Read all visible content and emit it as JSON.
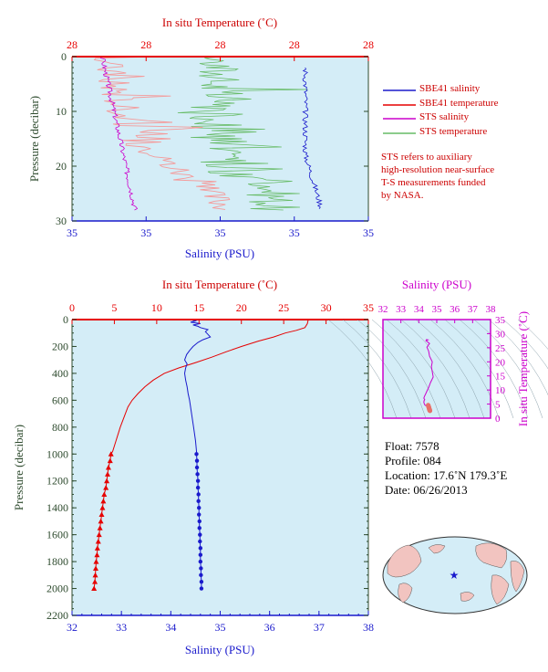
{
  "colors": {
    "salinity": "#1a1acc",
    "temperature": "#e60000",
    "sts_salinity": "#cc00cc",
    "sts_temperature": "#66bb66",
    "sts_temp_light": "#f49a9a",
    "background": "#d4edf7",
    "ts_accent": "#cc00cc",
    "pressure_label": "#2d4a2d"
  },
  "top_panel": {
    "top_axis_title": "In situ Temperature (˚C)",
    "top_ticks": [
      "28",
      "28",
      "28",
      "28",
      "28"
    ],
    "bottom_axis_title": "Salinity (PSU)",
    "bottom_ticks": [
      "35",
      "35",
      "35",
      "35",
      "35"
    ],
    "y_axis_title": "Pressure (decibar)",
    "y_ticks": [
      "0",
      "10",
      "20",
      "30"
    ]
  },
  "legend": {
    "items": [
      {
        "label": "SBE41 salinity",
        "color": "#1a1acc"
      },
      {
        "label": "SBE41 temperature",
        "color": "#e60000"
      },
      {
        "label": "STS salinity",
        "color": "#cc00cc"
      },
      {
        "label": "STS temperature",
        "color": "#66bb66"
      }
    ],
    "note_lines": [
      "STS refers to auxiliary",
      "high-resolution near-surface",
      "T-S measurements funded",
      "by NASA."
    ]
  },
  "chart_data": [
    {
      "type": "line",
      "title": "",
      "xlabel": "Salinity (PSU)",
      "x2label": "In situ Temperature (˚C)",
      "ylabel": "Pressure (decibar)",
      "xlim": [
        32,
        38
      ],
      "x2lim": [
        0,
        35
      ],
      "ylim": [
        2200,
        0
      ],
      "x_ticks": [
        32,
        33,
        34,
        35,
        36,
        37,
        38
      ],
      "x2_ticks": [
        0,
        5,
        10,
        15,
        20,
        25,
        30,
        35
      ],
      "y_ticks": [
        0,
        200,
        400,
        600,
        800,
        1000,
        1200,
        1400,
        1600,
        1800,
        2000,
        2200
      ],
      "series": [
        {
          "name": "SBE41 temperature",
          "axis": "top",
          "pressure": [
            0,
            30,
            60,
            80,
            100,
            130,
            160,
            200,
            240,
            280,
            320,
            360,
            400,
            450,
            500,
            550,
            600,
            650,
            700,
            800,
            900,
            980
          ],
          "values": [
            27.9,
            27.8,
            27.5,
            26.5,
            25.2,
            23.8,
            22.0,
            20.0,
            18.2,
            16.5,
            14.6,
            12.6,
            10.9,
            9.6,
            8.6,
            7.8,
            7.1,
            6.6,
            6.3,
            5.7,
            5.2,
            4.8
          ]
        },
        {
          "name": "SBE41 temperature discrete",
          "axis": "top",
          "pressure": [
            1000,
            1050,
            1100,
            1150,
            1200,
            1250,
            1300,
            1350,
            1400,
            1450,
            1500,
            1550,
            1600,
            1650,
            1700,
            1750,
            1800,
            1850,
            1900,
            1950,
            2000
          ],
          "values": [
            4.6,
            4.5,
            4.3,
            4.2,
            4.1,
            4.0,
            3.8,
            3.7,
            3.6,
            3.5,
            3.4,
            3.3,
            3.2,
            3.1,
            3.0,
            2.95,
            2.85,
            2.8,
            2.75,
            2.7,
            2.6
          ]
        },
        {
          "name": "SBE41 salinity",
          "axis": "bottom",
          "pressure": [
            0,
            10,
            20,
            30,
            40,
            50,
            60,
            75,
            90,
            110,
            130,
            150,
            170,
            200,
            230,
            260,
            300,
            330,
            360,
            400,
            450,
            500,
            550,
            600,
            700,
            800,
            900,
            980
          ],
          "values": [
            34.4,
            34.5,
            34.4,
            34.6,
            34.45,
            34.55,
            34.6,
            34.75,
            34.7,
            34.75,
            34.8,
            34.65,
            34.55,
            34.45,
            34.38,
            34.32,
            34.28,
            34.33,
            34.3,
            34.28,
            34.3,
            34.33,
            34.35,
            34.38,
            34.42,
            34.46,
            34.5,
            34.52
          ]
        },
        {
          "name": "SBE41 salinity discrete",
          "axis": "bottom",
          "pressure": [
            1000,
            1050,
            1100,
            1150,
            1200,
            1250,
            1300,
            1350,
            1400,
            1450,
            1500,
            1550,
            1600,
            1650,
            1700,
            1750,
            1800,
            1850,
            1900,
            1950,
            2000
          ],
          "values": [
            34.52,
            34.53,
            34.53,
            34.54,
            34.55,
            34.55,
            34.56,
            34.56,
            34.57,
            34.57,
            34.58,
            34.58,
            34.59,
            34.59,
            34.6,
            34.6,
            34.6,
            34.61,
            34.61,
            34.62,
            34.62
          ]
        }
      ]
    }
  ],
  "ts_panel": {
    "title": "Salinity (PSU)",
    "x_ticks": [
      "32",
      "33",
      "34",
      "35",
      "36",
      "37",
      "38"
    ],
    "y_ticks": [
      "0",
      "5",
      "10",
      "15",
      "20",
      "25",
      "30",
      "35"
    ],
    "y_axis_title": "In situ Temperature (˚C)"
  },
  "info": {
    "float": "Float:  7578",
    "profile": "Profile:  084",
    "location": "Location:  17.6˚N  179.3˚E",
    "date": "Date:  06/26/2013"
  },
  "bottom_panel": {
    "top_axis_title": "In situ Temperature (˚C)",
    "bottom_axis_title": "Salinity (PSU)",
    "y_axis_title": "Pressure (decibar)"
  }
}
